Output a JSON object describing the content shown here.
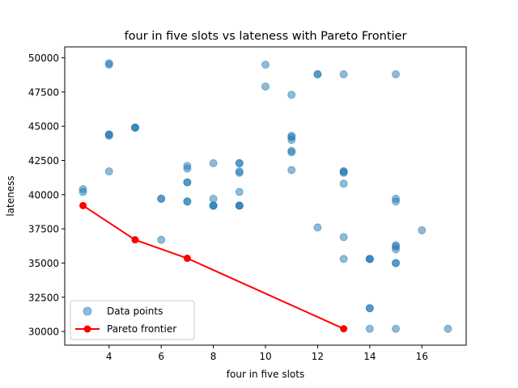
{
  "chart_data": {
    "type": "scatter",
    "title": "four in five slots vs lateness with Pareto Frontier",
    "xlabel": "four in five slots",
    "ylabel": "lateness",
    "xlim": [
      2.3,
      17.7
    ],
    "ylim": [
      29000,
      50800
    ],
    "xticks": [
      4,
      6,
      8,
      10,
      12,
      14,
      16
    ],
    "yticks": [
      30000,
      32500,
      35000,
      37500,
      40000,
      42500,
      45000,
      47500,
      50000
    ],
    "grid": false,
    "legend_position": "lower-left",
    "series": [
      {
        "name": "Data points",
        "kind": "scatter",
        "color": "#1f77b4",
        "points": [
          [
            3,
            40400
          ],
          [
            3,
            40200
          ],
          [
            4,
            49500
          ],
          [
            4,
            49600
          ],
          [
            4,
            44400
          ],
          [
            4,
            44300
          ],
          [
            4,
            44400
          ],
          [
            4,
            41700
          ],
          [
            5,
            44900
          ],
          [
            5,
            44900
          ],
          [
            5,
            44900
          ],
          [
            6,
            39700
          ],
          [
            6,
            39700
          ],
          [
            6,
            36700
          ],
          [
            7,
            42100
          ],
          [
            7,
            41900
          ],
          [
            7,
            40900
          ],
          [
            7,
            40900
          ],
          [
            7,
            39500
          ],
          [
            7,
            39500
          ],
          [
            8,
            42300
          ],
          [
            8,
            39700
          ],
          [
            8,
            39200
          ],
          [
            8,
            39200
          ],
          [
            8,
            39200
          ],
          [
            9,
            42300
          ],
          [
            9,
            42300
          ],
          [
            9,
            41700
          ],
          [
            9,
            41600
          ],
          [
            9,
            40200
          ],
          [
            9,
            39200
          ],
          [
            9,
            39200
          ],
          [
            9,
            39200
          ],
          [
            10,
            49500
          ],
          [
            10,
            47900
          ],
          [
            11,
            47300
          ],
          [
            11,
            44300
          ],
          [
            11,
            44200
          ],
          [
            11,
            44000
          ],
          [
            11,
            43200
          ],
          [
            11,
            43100
          ],
          [
            11,
            41800
          ],
          [
            12,
            48800
          ],
          [
            12,
            48800
          ],
          [
            12,
            37600
          ],
          [
            13,
            48800
          ],
          [
            13,
            41700
          ],
          [
            13,
            41700
          ],
          [
            13,
            41600
          ],
          [
            13,
            40800
          ],
          [
            13,
            36900
          ],
          [
            13,
            35300
          ],
          [
            14,
            35300
          ],
          [
            14,
            35300
          ],
          [
            14,
            35300
          ],
          [
            14,
            31700
          ],
          [
            14,
            31700
          ],
          [
            14,
            30200
          ],
          [
            15,
            48800
          ],
          [
            15,
            39700
          ],
          [
            15,
            39500
          ],
          [
            15,
            36300
          ],
          [
            15,
            36200
          ],
          [
            15,
            36000
          ],
          [
            15,
            35000
          ],
          [
            15,
            35000
          ],
          [
            15,
            30200
          ],
          [
            16,
            37400
          ],
          [
            17,
            30200
          ]
        ]
      },
      {
        "name": "Pareto frontier",
        "kind": "line",
        "color": "#ff0000",
        "points": [
          [
            3,
            39200
          ],
          [
            5,
            36700
          ],
          [
            7,
            35350
          ],
          [
            13,
            30200
          ]
        ]
      }
    ]
  }
}
